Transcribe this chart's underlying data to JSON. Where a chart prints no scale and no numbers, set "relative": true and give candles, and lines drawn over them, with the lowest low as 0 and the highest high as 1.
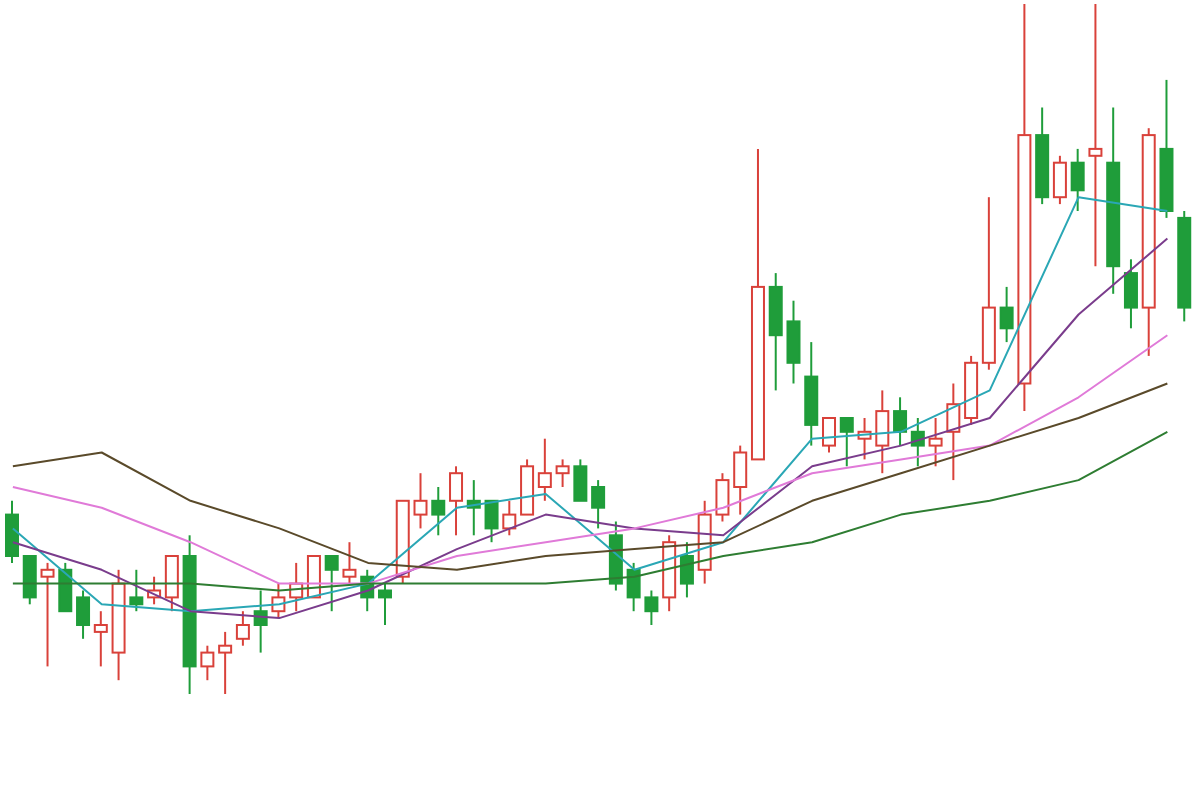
{
  "chart_data": {
    "type": "candlestick",
    "relative": true,
    "categories": [
      null,
      null,
      null,
      null,
      null,
      null,
      null,
      null,
      null,
      null,
      null,
      null,
      null,
      null,
      null,
      null,
      null,
      null,
      null,
      null,
      null,
      null,
      null,
      null,
      null,
      null,
      null,
      null,
      null,
      null,
      null,
      null,
      null,
      null,
      null,
      null,
      null,
      null,
      null,
      null,
      null,
      null,
      null,
      null,
      null,
      null,
      null,
      null,
      null,
      null,
      null,
      null,
      null,
      null,
      null,
      null,
      null,
      null,
      null,
      null,
      null,
      null,
      null,
      null,
      null,
      null,
      null
    ],
    "ohlc": [
      [
        0.26,
        0.28,
        0.19,
        0.2
      ],
      [
        0.2,
        0.2,
        0.13,
        0.14
      ],
      [
        0.17,
        0.19,
        0.04,
        0.18
      ],
      [
        0.18,
        0.19,
        0.12,
        0.12
      ],
      [
        0.14,
        0.15,
        0.08,
        0.1
      ],
      [
        0.09,
        0.12,
        0.04,
        0.1
      ],
      [
        0.06,
        0.18,
        0.02,
        0.16
      ],
      [
        0.14,
        0.18,
        0.12,
        0.13
      ],
      [
        0.14,
        0.17,
        0.13,
        0.15
      ],
      [
        0.14,
        0.2,
        0.12,
        0.2
      ],
      [
        0.2,
        0.23,
        0,
        0.04
      ],
      [
        0.04,
        0.07,
        0.02,
        0.06
      ],
      [
        0.06,
        0.09,
        0,
        0.07
      ],
      [
        0.08,
        0.12,
        0.07,
        0.1
      ],
      [
        0.12,
        0.15,
        0.06,
        0.1
      ],
      [
        0.12,
        0.16,
        0.11,
        0.14
      ],
      [
        0.14,
        0.19,
        0.12,
        0.16
      ],
      [
        0.14,
        0.2,
        0.14,
        0.2
      ],
      [
        0.2,
        0.2,
        0.12,
        0.18
      ],
      [
        0.17,
        0.22,
        0.16,
        0.18
      ],
      [
        0.17,
        0.18,
        0.12,
        0.14
      ],
      [
        0.15,
        0.16,
        0.1,
        0.14
      ],
      [
        0.17,
        0.28,
        0.16,
        0.28
      ],
      [
        0.26,
        0.32,
        0.24,
        0.28
      ],
      [
        0.28,
        0.3,
        0.23,
        0.26
      ],
      [
        0.28,
        0.33,
        0.23,
        0.32
      ],
      [
        0.28,
        0.31,
        0.23,
        0.27
      ],
      [
        0.28,
        0.28,
        0.22,
        0.24
      ],
      [
        0.24,
        0.28,
        0.23,
        0.26
      ],
      [
        0.26,
        0.34,
        0.26,
        0.33
      ],
      [
        0.3,
        0.37,
        0.28,
        0.32
      ],
      [
        0.32,
        0.34,
        0.3,
        0.33
      ],
      [
        0.33,
        0.34,
        0.28,
        0.28
      ],
      [
        0.3,
        0.31,
        0.24,
        0.27
      ],
      [
        0.23,
        0.25,
        0.15,
        0.16
      ],
      [
        0.18,
        0.19,
        0.12,
        0.14
      ],
      [
        0.14,
        0.15,
        0.1,
        0.12
      ],
      [
        0.14,
        0.23,
        0.12,
        0.22
      ],
      [
        0.2,
        0.22,
        0.14,
        0.16
      ],
      [
        0.18,
        0.28,
        0.16,
        0.26
      ],
      [
        0.26,
        0.32,
        0.25,
        0.31
      ],
      [
        0.3,
        0.36,
        0.26,
        0.35
      ],
      [
        0.34,
        0.79,
        0.34,
        0.59
      ],
      [
        0.59,
        0.61,
        0.44,
        0.52
      ],
      [
        0.54,
        0.57,
        0.45,
        0.48
      ],
      [
        0.46,
        0.51,
        0.36,
        0.39
      ],
      [
        0.36,
        0.4,
        0.35,
        0.4
      ],
      [
        0.4,
        0.4,
        0.33,
        0.38
      ],
      [
        0.37,
        0.4,
        0.34,
        0.38
      ],
      [
        0.36,
        0.44,
        0.32,
        0.41
      ],
      [
        0.41,
        0.43,
        0.36,
        0.38
      ],
      [
        0.38,
        0.4,
        0.33,
        0.36
      ],
      [
        0.36,
        0.4,
        0.33,
        0.37
      ],
      [
        0.38,
        0.45,
        0.31,
        0.42
      ],
      [
        0.4,
        0.49,
        0.39,
        0.48
      ],
      [
        0.48,
        0.72,
        0.47,
        0.56
      ],
      [
        0.56,
        0.59,
        0.51,
        0.53
      ],
      [
        0.45,
        1.0,
        0.41,
        0.81
      ],
      [
        0.81,
        0.85,
        0.71,
        0.72
      ],
      [
        0.72,
        0.78,
        0.71,
        0.77
      ],
      [
        0.77,
        0.79,
        0.7,
        0.73
      ],
      [
        0.78,
        1.0,
        0.62,
        0.79
      ],
      [
        0.77,
        0.85,
        0.58,
        0.62
      ],
      [
        0.61,
        0.63,
        0.53,
        0.56
      ],
      [
        0.56,
        0.82,
        0.49,
        0.81
      ],
      [
        0.79,
        0.89,
        0.69,
        0.7
      ],
      [
        0.69,
        0.7,
        0.54,
        0.56
      ]
    ],
    "colors": [
      "#1f9d3a",
      "#1f9d3a",
      "#d9413a",
      "#1f9d3a",
      "#1f9d3a",
      "#d9413a",
      "#d9413a",
      "#1f9d3a",
      "#d9413a",
      "#d9413a",
      "#1f9d3a",
      "#d9413a",
      "#d9413a",
      "#d9413a",
      "#1f9d3a",
      "#d9413a",
      "#d9413a",
      "#d9413a",
      "#1f9d3a",
      "#d9413a",
      "#1f9d3a",
      "#1f9d3a",
      "#d9413a",
      "#d9413a",
      "#1f9d3a",
      "#d9413a",
      "#1f9d3a",
      "#1f9d3a",
      "#d9413a",
      "#d9413a",
      "#d9413a",
      "#d9413a",
      "#1f9d3a",
      "#1f9d3a",
      "#1f9d3a",
      "#1f9d3a",
      "#1f9d3a",
      "#d9413a",
      "#1f9d3a",
      "#d9413a",
      "#d9413a",
      "#d9413a",
      "#d9413a",
      "#1f9d3a",
      "#1f9d3a",
      "#1f9d3a",
      "#d9413a",
      "#1f9d3a",
      "#d9413a",
      "#d9413a",
      "#1f9d3a",
      "#1f9d3a",
      "#d9413a",
      "#d9413a",
      "#d9413a",
      "#d9413a",
      "#1f9d3a",
      "#d9413a",
      "#1f9d3a",
      "#d9413a",
      "#1f9d3a",
      "#d9413a",
      "#1f9d3a",
      "#1f9d3a",
      "#d9413a",
      "#1f9d3a",
      "#1f9d3a"
    ],
    "series": [
      {
        "type": "line",
        "color": "#2aa7b5",
        "values": [
          0.24,
          null,
          null,
          null,
          null,
          0.13,
          null,
          null,
          null,
          null,
          0.12,
          null,
          null,
          null,
          null,
          0.13,
          null,
          null,
          null,
          null,
          0.16,
          null,
          null,
          null,
          null,
          0.27,
          null,
          null,
          null,
          null,
          0.29,
          null,
          null,
          null,
          null,
          0.18,
          null,
          null,
          null,
          null,
          0.22,
          null,
          null,
          null,
          null,
          0.37,
          null,
          null,
          null,
          null,
          0.38,
          null,
          null,
          null,
          null,
          0.44,
          null,
          null,
          null,
          null,
          0.72,
          null,
          null,
          null,
          null,
          0.7,
          null
        ]
      },
      {
        "type": "line",
        "color": "#7a3c8c",
        "values": [
          0.22,
          null,
          null,
          null,
          null,
          0.18,
          null,
          null,
          null,
          null,
          0.12,
          null,
          null,
          null,
          null,
          0.11,
          null,
          null,
          null,
          null,
          0.15,
          null,
          null,
          null,
          null,
          0.21,
          null,
          null,
          null,
          null,
          0.26,
          null,
          null,
          null,
          null,
          0.24,
          null,
          null,
          null,
          null,
          0.23,
          null,
          null,
          null,
          null,
          0.33,
          null,
          null,
          null,
          null,
          0.36,
          null,
          null,
          null,
          null,
          0.4,
          null,
          null,
          null,
          null,
          0.55,
          null,
          null,
          null,
          null,
          0.66,
          null
        ]
      },
      {
        "type": "line",
        "color": "#e07ad8",
        "values": [
          0.3,
          null,
          null,
          null,
          null,
          0.27,
          null,
          null,
          null,
          null,
          0.22,
          null,
          null,
          null,
          null,
          0.16,
          null,
          null,
          null,
          null,
          0.16,
          null,
          null,
          null,
          null,
          0.2,
          null,
          null,
          null,
          null,
          0.22,
          null,
          null,
          null,
          null,
          0.24,
          null,
          null,
          null,
          null,
          0.27,
          null,
          null,
          null,
          null,
          0.32,
          null,
          null,
          null,
          null,
          0.34,
          null,
          null,
          null,
          null,
          0.36,
          null,
          null,
          null,
          null,
          0.43,
          null,
          null,
          null,
          null,
          0.52,
          null
        ]
      },
      {
        "type": "line",
        "color": "#5a4a2a",
        "values": [
          0.33,
          null,
          null,
          null,
          null,
          0.35,
          null,
          null,
          null,
          null,
          0.28,
          null,
          null,
          null,
          null,
          0.24,
          null,
          null,
          null,
          null,
          0.19,
          null,
          null,
          null,
          null,
          0.18,
          null,
          null,
          null,
          null,
          0.2,
          null,
          null,
          null,
          null,
          0.21,
          null,
          null,
          null,
          null,
          0.22,
          null,
          null,
          null,
          null,
          0.28,
          null,
          null,
          null,
          null,
          0.32,
          null,
          null,
          null,
          null,
          0.36,
          null,
          null,
          null,
          null,
          0.4,
          null,
          null,
          null,
          null,
          0.45,
          null
        ]
      },
      {
        "type": "line",
        "color": "#2e7d32",
        "values": [
          0.16,
          null,
          null,
          null,
          null,
          0.16,
          null,
          null,
          null,
          null,
          0.16,
          null,
          null,
          null,
          null,
          0.15,
          null,
          null,
          null,
          null,
          0.16,
          null,
          null,
          null,
          null,
          0.16,
          null,
          null,
          null,
          null,
          0.16,
          null,
          null,
          null,
          null,
          0.17,
          null,
          null,
          null,
          null,
          0.2,
          null,
          null,
          null,
          null,
          0.22,
          null,
          null,
          null,
          null,
          0.26,
          null,
          null,
          null,
          null,
          0.28,
          null,
          null,
          null,
          null,
          0.31,
          null,
          null,
          null,
          null,
          0.38,
          null
        ]
      }
    ]
  }
}
